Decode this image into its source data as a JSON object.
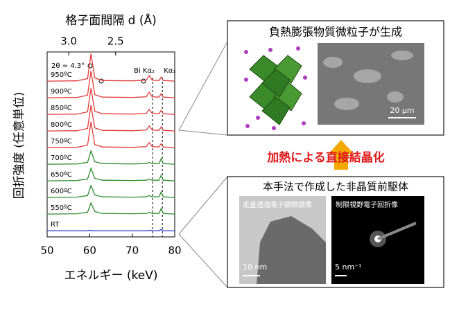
{
  "chart_data": {
    "type": "line",
    "top_axis_label": "格子面間隔 d (Å)",
    "x_label": "エネルギー (keV)",
    "y_label": "回折強度 (任意単位)",
    "annotation": "2θ = 4.3°",
    "two_theta": 4.3,
    "peak_labels": [
      "Bi Kα₂",
      "Kα₁"
    ],
    "reference_lines": [
      74.8,
      77.1
    ],
    "xlim": [
      50,
      80
    ],
    "xticks": [
      50,
      60,
      70,
      80
    ],
    "top_ticks": [
      {
        "value": 3.0,
        "label": "3.0"
      },
      {
        "value": 2.5,
        "label": "2.5"
      }
    ],
    "ylim": [
      0,
      1
    ],
    "x": [
      50,
      57,
      59.5,
      60.3,
      61.2,
      63,
      70,
      73.3,
      74,
      74.7,
      76.3,
      76.8,
      77.3,
      80
    ],
    "series": [
      {
        "name": "950ºC",
        "color": "#e03a3a",
        "values": [
          0.02,
          0.03,
          0.1,
          0.9,
          0.12,
          0.04,
          0.03,
          0.05,
          0.2,
          0.05,
          0.04,
          0.15,
          0.04,
          0.02
        ]
      },
      {
        "name": "900ºC",
        "color": "#e03a3a",
        "values": [
          0.02,
          0.03,
          0.1,
          0.88,
          0.12,
          0.04,
          0.03,
          0.05,
          0.2,
          0.05,
          0.04,
          0.15,
          0.04,
          0.02
        ]
      },
      {
        "name": "850ºC",
        "color": "#e03a3a",
        "values": [
          0.02,
          0.03,
          0.1,
          0.86,
          0.12,
          0.04,
          0.03,
          0.05,
          0.18,
          0.05,
          0.04,
          0.15,
          0.04,
          0.02
        ]
      },
      {
        "name": "800ºC",
        "color": "#e03a3a",
        "values": [
          0.02,
          0.03,
          0.1,
          0.85,
          0.12,
          0.04,
          0.03,
          0.05,
          0.18,
          0.05,
          0.04,
          0.15,
          0.04,
          0.02
        ]
      },
      {
        "name": "750ºC",
        "color": "#e03a3a",
        "values": [
          0.02,
          0.03,
          0.1,
          0.85,
          0.12,
          0.04,
          0.03,
          0.05,
          0.18,
          0.05,
          0.04,
          0.15,
          0.04,
          0.02
        ]
      },
      {
        "name": "700ºC",
        "color": "#2e8b2e",
        "values": [
          0.02,
          0.03,
          0.08,
          0.45,
          0.1,
          0.04,
          0.03,
          0.04,
          0.08,
          0.04,
          0.04,
          0.2,
          0.04,
          0.02
        ]
      },
      {
        "name": "650ºC",
        "color": "#2e8b2e",
        "values": [
          0.02,
          0.03,
          0.08,
          0.42,
          0.1,
          0.04,
          0.03,
          0.04,
          0.08,
          0.04,
          0.04,
          0.2,
          0.04,
          0.02
        ]
      },
      {
        "name": "600ºC",
        "color": "#2e8b2e",
        "values": [
          0.02,
          0.03,
          0.08,
          0.4,
          0.1,
          0.04,
          0.03,
          0.04,
          0.08,
          0.04,
          0.04,
          0.2,
          0.04,
          0.02
        ]
      },
      {
        "name": "550ºC",
        "color": "#2e8b2e",
        "values": [
          0.02,
          0.03,
          0.08,
          0.38,
          0.1,
          0.04,
          0.03,
          0.04,
          0.08,
          0.04,
          0.04,
          0.2,
          0.04,
          0.02
        ]
      },
      {
        "name": "RT",
        "color": "#2340c8",
        "values": [
          0.02,
          0.02,
          0.02,
          0.03,
          0.02,
          0.02,
          0.02,
          0.02,
          0.03,
          0.02,
          0.02,
          0.06,
          0.02,
          0.02
        ]
      }
    ]
  },
  "panels": {
    "top_title": "負熱膨張物質微粒子が生成",
    "sem_scale": "20 μm",
    "arrow_text": "加熱による直接結晶化",
    "bottom_title": "本手法で作成した非晶質前駆体",
    "stem_label": "走査透過電子顕微鏡像",
    "diff_label": "制限視野電子回折像",
    "stem_scale": "10 nm",
    "diff_scale": "5 nm⁻¹"
  }
}
